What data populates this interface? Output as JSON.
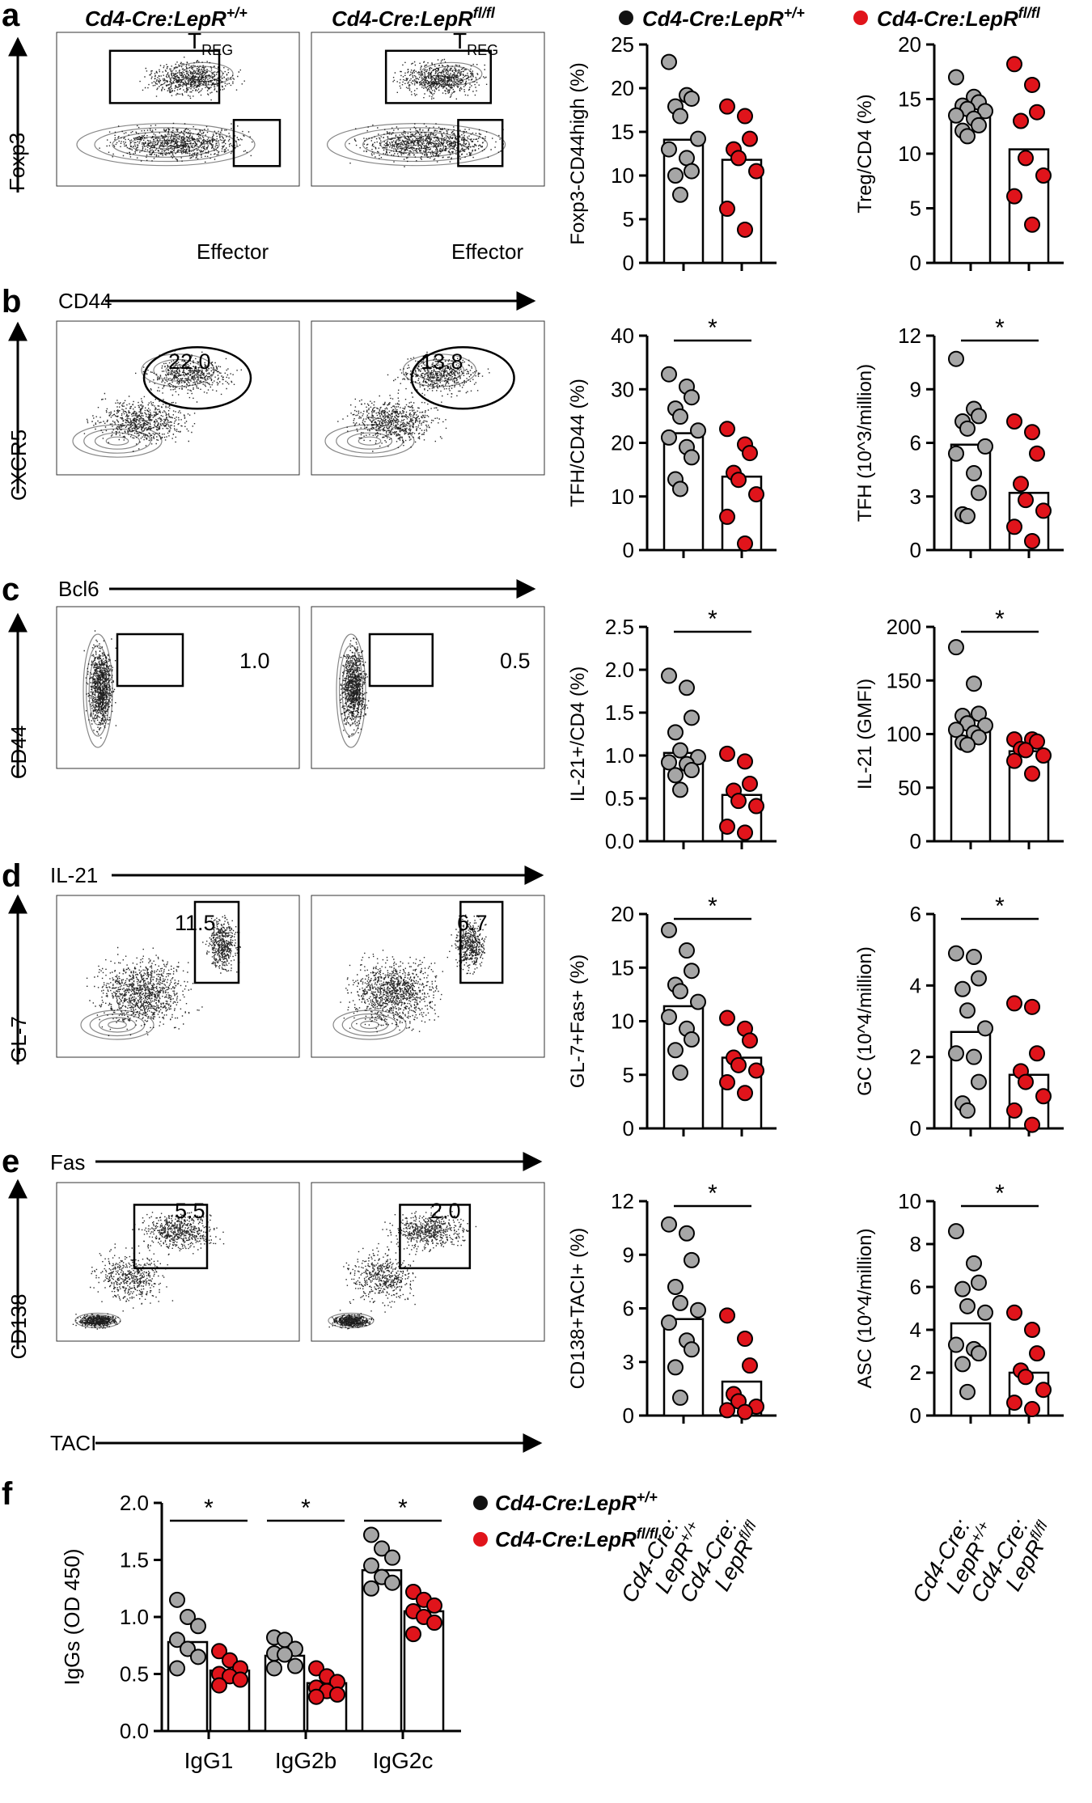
{
  "panel_letters": [
    "a",
    "b",
    "c",
    "d",
    "e",
    "f"
  ],
  "headers": {
    "wt": "Cd4-Cre:LepR",
    "wt_sup": "+/+",
    "ko": "Cd4-Cre:LepR",
    "ko_sup": "fl/fl"
  },
  "colors": {
    "wt": "#a6a6a6",
    "ko": "#e0141b",
    "legend_wt": "#111111",
    "legend_ko": "#e0141b",
    "bar_fill": "#ffffff",
    "axis": "#000000"
  },
  "flow": {
    "a": {
      "y_label": "Foxp3",
      "x_label": "CD44",
      "gates": [
        "T",
        "REG",
        "Effector"
      ],
      "values_wt": [],
      "values_ko": []
    },
    "b": {
      "y_label": "CXCR5",
      "x_label": "Bcl6",
      "gate_wt": "22.0",
      "gate_ko": "13.8"
    },
    "c": {
      "y_label": "CD44",
      "x_label": "IL-21",
      "gate_wt": "1.0",
      "gate_ko": "0.5"
    },
    "d": {
      "y_label": "GL-7",
      "x_label": "Fas",
      "gate_wt": "11.5",
      "gate_ko": "6.7"
    },
    "e": {
      "y_label": "CD138",
      "x_label": "TACI",
      "gate_wt": "5.5",
      "gate_ko": "2.0"
    }
  },
  "x_category_labels": {
    "wt_line1": "Cd4-Cre:",
    "wt_line2": "LepR",
    "wt_sup": "+/+",
    "ko_line1": "Cd4-Cre:",
    "ko_line2": "LepR",
    "ko_sup": "fl/fl"
  },
  "chart_data": [
    {
      "id": "a1",
      "type": "bar",
      "ylabel": "Foxp3-CD44high (%)",
      "ylim": [
        0,
        25
      ],
      "ticks": [
        0,
        5,
        10,
        15,
        20,
        25
      ],
      "categories": [
        "Cd4-Cre:LepR+/+",
        "Cd4-Cre:LepRfl/fl"
      ],
      "means": [
        14.1,
        11.8
      ],
      "significance": "",
      "points": [
        [
          23,
          19.2,
          18.8,
          17.9,
          16.8,
          14.2,
          13,
          12,
          10.5,
          10,
          7.8
        ],
        [
          17.9,
          16.8,
          14.2,
          13,
          12,
          10.5,
          6.2,
          3.8
        ]
      ]
    },
    {
      "id": "a2",
      "type": "bar",
      "ylabel": "Treg/CD4 (%)",
      "ylim": [
        0,
        20
      ],
      "ticks": [
        0,
        5,
        10,
        15,
        20
      ],
      "categories": [
        "Cd4-Cre:LepR+/+",
        "Cd4-Cre:LepRfl/fl"
      ],
      "means": [
        13.5,
        10.4
      ],
      "significance": "",
      "points": [
        [
          17,
          15.2,
          14.7,
          14.4,
          14.1,
          13.9,
          13.5,
          13.2,
          12.6,
          12.1,
          11.6
        ],
        [
          18.2,
          16.3,
          13.8,
          13,
          9.6,
          8,
          6.1,
          3.5
        ]
      ]
    },
    {
      "id": "b1",
      "type": "bar",
      "ylabel": "TFH/CD44 (%)",
      "ylim": [
        0,
        40
      ],
      "ticks": [
        0,
        10,
        20,
        30,
        40
      ],
      "categories": [
        "Cd4-Cre:LepR+/+",
        "Cd4-Cre:LepRfl/fl"
      ],
      "means": [
        21.8,
        13.7
      ],
      "significance": "*",
      "points": [
        [
          32.8,
          30.5,
          28.5,
          26.4,
          24.9,
          22.3,
          21,
          19.2,
          17.3,
          13.2,
          11.4
        ],
        [
          22.6,
          19.7,
          18.1,
          14.4,
          13.1,
          10.4,
          6.2,
          1.2
        ]
      ]
    },
    {
      "id": "b2",
      "type": "bar",
      "ylabel": "TFH (10^3/million)",
      "ylim": [
        0,
        12
      ],
      "ticks": [
        0,
        3,
        6,
        9,
        12
      ],
      "categories": [
        "Cd4-Cre:LepR+/+",
        "Cd4-Cre:LepRfl/fl"
      ],
      "means": [
        5.9,
        3.2
      ],
      "significance": "*",
      "points": [
        [
          10.7,
          7.9,
          7.5,
          7.2,
          6.8,
          5.8,
          5.4,
          4.3,
          3.2,
          2,
          1.9
        ],
        [
          7.2,
          6.6,
          5.4,
          3.7,
          2.8,
          2.2,
          1.3,
          0.5
        ]
      ]
    },
    {
      "id": "c1",
      "type": "bar",
      "ylabel": "IL-21+/CD4 (%)",
      "ylim": [
        0,
        2.5
      ],
      "ticks": [
        "0.0",
        "0.5",
        "1.0",
        "1.5",
        "2.0",
        "2.5"
      ],
      "categories": [
        "Cd4-Cre:LepR+/+",
        "Cd4-Cre:LepRfl/fl"
      ],
      "means": [
        1.03,
        0.54
      ],
      "significance": "*",
      "points": [
        [
          1.93,
          1.79,
          1.44,
          1.27,
          1.06,
          0.98,
          0.92,
          0.9,
          0.83,
          0.77,
          0.6
        ],
        [
          1.02,
          0.93,
          0.67,
          0.59,
          0.47,
          0.41,
          0.17,
          0.1
        ]
      ]
    },
    {
      "id": "c2",
      "type": "bar",
      "ylabel": "IL-21 (GMFI)",
      "ylim": [
        0,
        200
      ],
      "ticks": [
        0,
        50,
        100,
        150,
        200
      ],
      "categories": [
        "Cd4-Cre:LepR+/+",
        "Cd4-Cre:LepRfl/fl"
      ],
      "means": [
        106,
        84
      ],
      "significance": "*",
      "points": [
        [
          181,
          147,
          119,
          117,
          110,
          108,
          104,
          101,
          97,
          92,
          90
        ],
        [
          95,
          95,
          93,
          86,
          85,
          80,
          75,
          63
        ]
      ]
    },
    {
      "id": "d1",
      "type": "bar",
      "ylabel": "GL-7+Fas+ (%)",
      "ylim": [
        0,
        20
      ],
      "ticks": [
        0,
        5,
        10,
        15,
        20
      ],
      "categories": [
        "Cd4-Cre:LepR+/+",
        "Cd4-Cre:LepRfl/fl"
      ],
      "means": [
        11.4,
        6.6
      ],
      "significance": "*",
      "points": [
        [
          18.5,
          16.6,
          14.7,
          13.4,
          12.8,
          11.8,
          10.4,
          9.3,
          8.3,
          7.3,
          5.2
        ],
        [
          10.3,
          9.3,
          8.2,
          6.6,
          5.9,
          5.4,
          4.3,
          3.3
        ]
      ]
    },
    {
      "id": "d2",
      "type": "bar",
      "ylabel": "GC (10^4/million)",
      "ylim": [
        0,
        6
      ],
      "ticks": [
        0,
        2,
        4,
        6
      ],
      "categories": [
        "Cd4-Cre:LepR+/+",
        "Cd4-Cre:LepRfl/fl"
      ],
      "means": [
        2.7,
        1.5
      ],
      "significance": "*",
      "points": [
        [
          4.9,
          4.8,
          4.2,
          3.9,
          3.3,
          2.8,
          2.1,
          2.0,
          1.3,
          0.7,
          0.5
        ],
        [
          3.5,
          3.4,
          2.1,
          1.6,
          1.3,
          0.9,
          0.5,
          0.1
        ]
      ]
    },
    {
      "id": "e1",
      "type": "bar",
      "ylabel": "CD138+TACI+ (%)",
      "ylim": [
        0,
        12
      ],
      "ticks": [
        0,
        3,
        6,
        9,
        12
      ],
      "categories": [
        "Cd4-Cre:LepR+/+",
        "Cd4-Cre:LepRfl/fl"
      ],
      "means": [
        5.4,
        1.9
      ],
      "significance": "*",
      "points": [
        [
          10.7,
          10.2,
          8.7,
          7.2,
          6.3,
          5.9,
          5.2,
          4.2,
          3.7,
          2.7,
          1
        ],
        [
          5.6,
          4.3,
          2.8,
          1.2,
          0.8,
          0.5,
          0.3,
          0.2
        ]
      ]
    },
    {
      "id": "e2",
      "type": "bar",
      "ylabel": "ASC (10^4/million)",
      "ylim": [
        0,
        10
      ],
      "ticks": [
        0,
        2,
        4,
        6,
        8,
        10
      ],
      "categories": [
        "Cd4-Cre:LepR+/+",
        "Cd4-Cre:LepRfl/fl"
      ],
      "means": [
        4.3,
        2.0
      ],
      "significance": "*",
      "points": [
        [
          8.6,
          7.1,
          6.2,
          5.9,
          5.1,
          4.8,
          3.3,
          3.1,
          2.9,
          2.4,
          1.1
        ],
        [
          4.8,
          4,
          2.9,
          2.1,
          1.8,
          1.2,
          0.6,
          0.3
        ]
      ]
    },
    {
      "id": "f",
      "type": "bar",
      "ylabel": "IgGs (OD 450)",
      "ylim": [
        0,
        2.0
      ],
      "ticks": [
        "0.0",
        "0.5",
        "1.0",
        "1.5",
        "2.0"
      ],
      "categories": [
        "IgG1",
        "IgG2b",
        "IgG2c"
      ],
      "series": [
        {
          "name": "Cd4-Cre:LepR+/+",
          "means": [
            0.78,
            0.66,
            1.41
          ],
          "points": [
            [
              1.15,
              1.0,
              0.92,
              0.8,
              0.72,
              0.65,
              0.55
            ],
            [
              0.82,
              0.8,
              0.72,
              0.68,
              0.67,
              0.57,
              0.55
            ],
            [
              1.72,
              1.6,
              1.52,
              1.45,
              1.35,
              1.3,
              1.25
            ]
          ]
        },
        {
          "name": "Cd4-Cre:LepRfl/fl",
          "means": [
            0.53,
            0.42,
            1.05
          ],
          "points": [
            [
              0.7,
              0.62,
              0.55,
              0.5,
              0.48,
              0.45,
              0.4
            ],
            [
              0.55,
              0.48,
              0.43,
              0.38,
              0.35,
              0.32,
              0.3
            ],
            [
              1.22,
              1.15,
              1.1,
              1.05,
              1.0,
              0.95,
              0.85
            ]
          ]
        }
      ],
      "significance": [
        "*",
        "*",
        "*"
      ]
    }
  ]
}
